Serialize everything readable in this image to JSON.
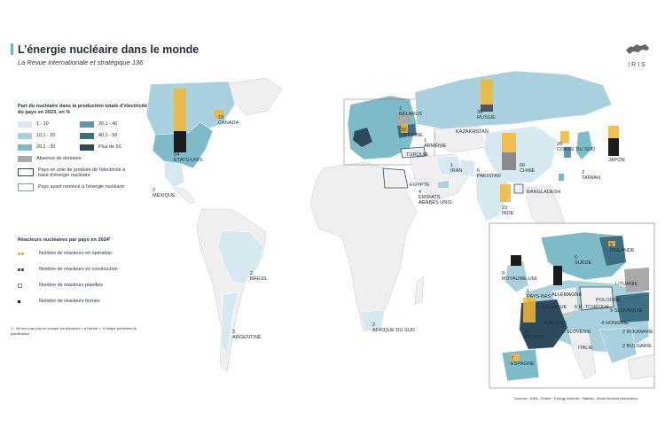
{
  "header": {
    "title": "L’énergie nucléaire dans le monde",
    "subtitle": "La Revue internationale et stratégique 136",
    "logo_text": "IRIS"
  },
  "legend_share": {
    "title": "Part du nucléaire dans la production totale d’électricité du pays en 2023, en %",
    "classes": [
      {
        "label": "1 - 10",
        "color": "#d6e8f0"
      },
      {
        "label": "30,1 - 40",
        "color": "#5f98a9"
      },
      {
        "label": "10,1 - 20",
        "color": "#a9d0dd"
      },
      {
        "label": "40,1 - 50",
        "color": "#3d6f82"
      },
      {
        "label": "20,1 - 30",
        "color": "#7dbbc9"
      },
      {
        "label": "Plus de 50",
        "color": "#2d4a5a"
      }
    ],
    "no_data": {
      "label": "Absence de données",
      "color": "#a7a9ab"
    },
    "producing_soon": "Pays en voie de produire de l’électricité à base d’énergie nucléaire",
    "renounced": "Pays ayant renoncé à l’énergie nucléaire"
  },
  "legend_reactors": {
    "title": "Réacteurs nucléaires par pays en 2024¹",
    "items": [
      {
        "label": "Nombre de réacteurs en opération",
        "color": "#f2b632"
      },
      {
        "label": "Nombre de réacteurs en construction",
        "color": "#555555"
      },
      {
        "label": "Nombre de réacteurs planifiés",
        "color": "#ffffff"
      },
      {
        "label": "Nombre de réacteurs fermés",
        "color": "#1c1c1c"
      }
    ]
  },
  "footnote": "1 - Ne sont pas pris en compte les réacteurs « à l’étude », à l’étape précédent la planification.",
  "sources": "Sources : AIEA ; Ember ; Energy Institute ; Statista ; World Nuclear Association",
  "colors": {
    "ocean": "#ffffff",
    "land": "#efefef",
    "land_stroke": "#c9c9c9",
    "accent": "#6fb3c2"
  },
  "countries": [
    {
      "name": "CANADA",
      "count": "19"
    },
    {
      "name": "ÉTATS-UNIS",
      "count": "94"
    },
    {
      "name": "MEXIQUE",
      "count": "2"
    },
    {
      "name": "BRÉSIL",
      "count": "2"
    },
    {
      "name": "ARGENTINE",
      "count": "3"
    },
    {
      "name": "BÉLARUS",
      "count": "2"
    },
    {
      "name": "UKRAINE",
      "count": "15"
    },
    {
      "name": "ARMÉNIE",
      "count": "1"
    },
    {
      "name": "TURQUIE",
      "count": ""
    },
    {
      "name": "ÉGYPTE",
      "count": ""
    },
    {
      "name": "RUSSIE",
      "count": "36"
    },
    {
      "name": "KAZAKHSTAN",
      "count": ""
    },
    {
      "name": "IRAN",
      "count": "1"
    },
    {
      "name": "PAKISTAN",
      "count": "6"
    },
    {
      "name": "ÉMIRATS ARABES UNIS",
      "count": "4"
    },
    {
      "name": "INDE",
      "count": "23"
    },
    {
      "name": "CHINE",
      "count": "56"
    },
    {
      "name": "BANGLADESH",
      "count": ""
    },
    {
      "name": "CORÉE DU SUD",
      "count": "26"
    },
    {
      "name": "TAÏWAN",
      "count": "2"
    },
    {
      "name": "JAPON",
      "count": "33"
    },
    {
      "name": "AFRIQUE DU SUD",
      "count": "2"
    }
  ],
  "europe_inset": [
    {
      "name": "FINLANDE",
      "count": "5"
    },
    {
      "name": "SUÈDE",
      "count": "6"
    },
    {
      "name": "ROYAUME-UNI",
      "count": "9"
    },
    {
      "name": "LITUANIE",
      "count": ""
    },
    {
      "name": "POLOGNE",
      "count": ""
    },
    {
      "name": "PAYS-BAS",
      "count": "1"
    },
    {
      "name": "ALLEMAGNE",
      "count": ""
    },
    {
      "name": "BELGIQUE",
      "count": "5"
    },
    {
      "name": "R. TCHÈQUE",
      "count": "6"
    },
    {
      "name": "SLOVAQUIE",
      "count": "5"
    },
    {
      "name": "HONGRIE",
      "count": "4"
    },
    {
      "name": "ROUMANIE",
      "count": "2"
    },
    {
      "name": "SUISSE",
      "count": "4"
    },
    {
      "name": "SLOVÉNIE",
      "count": "1"
    },
    {
      "name": "BULGARIE",
      "count": "2"
    },
    {
      "name": "FRANCE",
      "count": "56"
    },
    {
      "name": "ITALIE",
      "count": ""
    },
    {
      "name": "ESPAGNE",
      "count": "7"
    }
  ]
}
